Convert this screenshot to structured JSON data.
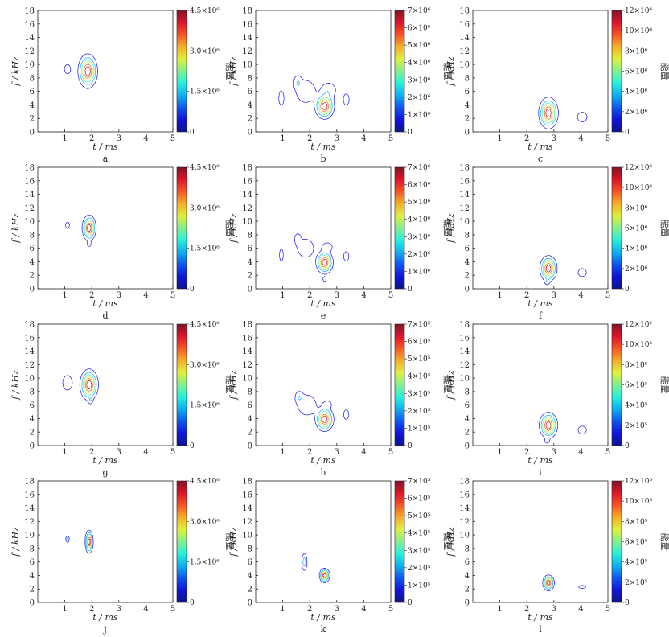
{
  "chart_data": [
    {
      "panel": "a",
      "type": "contour",
      "x_label": "t / ms",
      "y_label": "f / kHz",
      "colorbar_label": "能量",
      "xlim": [
        0,
        5
      ],
      "ylim": [
        0,
        18
      ],
      "xticks": [
        "1",
        "2",
        "3",
        "4",
        "5"
      ],
      "yticks": [
        "0",
        "2",
        "4",
        "6",
        "8",
        "10",
        "12",
        "14",
        "16",
        "18"
      ],
      "colorbar_ticks": [
        "0",
        "1.5×10⁶",
        "3.0×10⁶",
        "4.5×10⁶"
      ],
      "colorbar_max": 4500000,
      "blobs": [
        {
          "x": 1.85,
          "y": 9.0,
          "sx": 0.17,
          "sy": 1.2,
          "amp": 1.0
        },
        {
          "x": 1.1,
          "y": 9.3,
          "sx": 0.09,
          "sy": 0.55,
          "amp": 0.22
        }
      ]
    },
    {
      "panel": "b",
      "type": "contour",
      "x_label": "t / ms",
      "y_label": "f / kHz",
      "colorbar_label": "能量",
      "xlim": [
        0,
        5
      ],
      "ylim": [
        0,
        18
      ],
      "xticks": [
        "1",
        "2",
        "3",
        "4",
        "5"
      ],
      "yticks": [
        "0",
        "2",
        "4",
        "6",
        "8",
        "10",
        "12",
        "14",
        "16",
        "18"
      ],
      "colorbar_ticks": [
        "0",
        "1×10⁶",
        "2×10⁶",
        "3×10⁶",
        "4×10⁶",
        "5×10⁶",
        "6×10⁶",
        "7×10⁶"
      ],
      "colorbar_max": 7000000,
      "blobs": [
        {
          "x": 2.55,
          "y": 3.8,
          "sx": 0.17,
          "sy": 0.9,
          "amp": 1.0
        },
        {
          "x": 1.85,
          "y": 6.0,
          "sx": 0.25,
          "sy": 1.2,
          "amp": 0.25
        },
        {
          "x": 1.55,
          "y": 7.4,
          "sx": 0.1,
          "sy": 0.7,
          "amp": 0.2
        },
        {
          "x": 2.7,
          "y": 6.2,
          "sx": 0.2,
          "sy": 0.8,
          "amp": 0.22
        },
        {
          "x": 0.95,
          "y": 5.0,
          "sx": 0.08,
          "sy": 0.9,
          "amp": 0.2
        },
        {
          "x": 3.35,
          "y": 4.8,
          "sx": 0.09,
          "sy": 0.7,
          "amp": 0.2
        }
      ]
    },
    {
      "panel": "c",
      "type": "contour",
      "x_label": "t / ms",
      "y_label": "f / kHz",
      "colorbar_label": "能量",
      "xlim": [
        0,
        5
      ],
      "ylim": [
        0,
        18
      ],
      "xticks": [
        "1",
        "2",
        "3",
        "4",
        "5"
      ],
      "yticks": [
        "0",
        "2",
        "4",
        "6",
        "8",
        "10",
        "12",
        "14",
        "16",
        "18"
      ],
      "colorbar_ticks": [
        "0",
        "2×10⁶",
        "4×10⁶",
        "6×10⁶",
        "8×10⁶",
        "10×10⁶",
        "12×10⁶"
      ],
      "colorbar_max": 12000000,
      "blobs": [
        {
          "x": 2.8,
          "y": 2.8,
          "sx": 0.17,
          "sy": 1.1,
          "amp": 1.0
        },
        {
          "x": 4.05,
          "y": 2.2,
          "sx": 0.15,
          "sy": 0.6,
          "amp": 0.2
        }
      ]
    },
    {
      "panel": "d",
      "type": "contour",
      "x_label": "t / ms",
      "y_label": "f / kHz",
      "colorbar_label": "能量",
      "xlim": [
        0,
        5
      ],
      "ylim": [
        0,
        18
      ],
      "xticks": [
        "1",
        "2",
        "3",
        "4",
        "5"
      ],
      "yticks": [
        "0",
        "2",
        "4",
        "6",
        "8",
        "10",
        "12",
        "14",
        "16",
        "18"
      ],
      "colorbar_ticks": [
        "0",
        "1.5×10⁶",
        "3.0×10⁶",
        "4.5×10⁶"
      ],
      "colorbar_max": 4500000,
      "blobs": [
        {
          "x": 1.9,
          "y": 9.0,
          "sx": 0.12,
          "sy": 0.9,
          "amp": 1.0
        },
        {
          "x": 1.1,
          "y": 9.4,
          "sx": 0.06,
          "sy": 0.4,
          "amp": 0.2
        },
        {
          "x": 1.9,
          "y": 6.6,
          "sx": 0.05,
          "sy": 0.3,
          "amp": 0.18
        }
      ]
    },
    {
      "panel": "e",
      "type": "contour",
      "x_label": "t / ms",
      "y_label": "f / kHz",
      "colorbar_label": "能量",
      "xlim": [
        0,
        5
      ],
      "ylim": [
        0,
        18
      ],
      "xticks": [
        "1",
        "2",
        "3",
        "4",
        "5"
      ],
      "yticks": [
        "0",
        "2",
        "4",
        "6",
        "8",
        "10",
        "12",
        "14",
        "16",
        "18"
      ],
      "colorbar_ticks": [
        "0",
        "1×10⁶",
        "2×10⁶",
        "3×10⁶",
        "4×10⁶",
        "5×10⁶",
        "6×10⁶",
        "7×10⁶"
      ],
      "colorbar_max": 7000000,
      "blobs": [
        {
          "x": 2.55,
          "y": 3.9,
          "sx": 0.15,
          "sy": 0.8,
          "amp": 1.0
        },
        {
          "x": 1.85,
          "y": 6.0,
          "sx": 0.22,
          "sy": 1.0,
          "amp": 0.24
        },
        {
          "x": 1.55,
          "y": 7.4,
          "sx": 0.08,
          "sy": 0.6,
          "amp": 0.2
        },
        {
          "x": 2.65,
          "y": 6.2,
          "sx": 0.15,
          "sy": 0.5,
          "amp": 0.2
        },
        {
          "x": 0.95,
          "y": 5.0,
          "sx": 0.06,
          "sy": 0.8,
          "amp": 0.19
        },
        {
          "x": 3.35,
          "y": 4.8,
          "sx": 0.08,
          "sy": 0.6,
          "amp": 0.2
        },
        {
          "x": 2.55,
          "y": 1.4,
          "sx": 0.05,
          "sy": 0.3,
          "amp": 0.18
        }
      ]
    },
    {
      "panel": "f",
      "type": "contour",
      "x_label": "t / ms",
      "y_label": "f / kHz",
      "colorbar_label": "能量",
      "xlim": [
        0,
        5
      ],
      "ylim": [
        0,
        18
      ],
      "xticks": [
        "1",
        "2",
        "3",
        "4",
        "5"
      ],
      "yticks": [
        "0",
        "2",
        "4",
        "6",
        "8",
        "10",
        "12",
        "14",
        "16",
        "18"
      ],
      "colorbar_ticks": [
        "0",
        "2×10⁶",
        "4×10⁶",
        "6×10⁶",
        "8×10⁶",
        "10×10⁶",
        "12×10⁶"
      ],
      "colorbar_max": 12000000,
      "blobs": [
        {
          "x": 2.8,
          "y": 3.0,
          "sx": 0.15,
          "sy": 0.9,
          "amp": 1.0
        },
        {
          "x": 4.05,
          "y": 2.4,
          "sx": 0.13,
          "sy": 0.5,
          "amp": 0.2
        },
        {
          "x": 2.75,
          "y": 1.0,
          "sx": 0.06,
          "sy": 0.3,
          "amp": 0.18
        }
      ]
    },
    {
      "panel": "g",
      "type": "contour",
      "x_label": "t / ms",
      "y_label": "f / kHz",
      "colorbar_label": "能量",
      "xlim": [
        0,
        5
      ],
      "ylim": [
        0,
        18
      ],
      "xticks": [
        "1",
        "2",
        "3",
        "4",
        "5"
      ],
      "yticks": [
        "0",
        "2",
        "4",
        "6",
        "8",
        "10",
        "12",
        "14",
        "16",
        "18"
      ],
      "colorbar_ticks": [
        "0",
        "1.5×10⁶",
        "3.0×10⁶",
        "4.5×10⁶"
      ],
      "colorbar_max": 4500000,
      "blobs": [
        {
          "x": 1.9,
          "y": 9.0,
          "sx": 0.16,
          "sy": 1.1,
          "amp": 1.0
        },
        {
          "x": 1.1,
          "y": 9.3,
          "sx": 0.13,
          "sy": 0.8,
          "amp": 0.25
        },
        {
          "x": 1.95,
          "y": 6.6,
          "sx": 0.05,
          "sy": 0.3,
          "amp": 0.18
        }
      ]
    },
    {
      "panel": "h",
      "type": "contour",
      "x_label": "t / ms",
      "y_label": "f / kHz",
      "colorbar_label": "能量",
      "xlim": [
        0,
        5
      ],
      "ylim": [
        0,
        18
      ],
      "xticks": [
        "1",
        "2",
        "3",
        "4",
        "5"
      ],
      "yticks": [
        "0",
        "2",
        "4",
        "6",
        "8",
        "10",
        "12",
        "14",
        "16",
        "18"
      ],
      "colorbar_ticks": [
        "0",
        "1×10⁵",
        "2×10⁵",
        "3×10⁵",
        "4×10⁵",
        "5×10⁵",
        "6×10⁵",
        "7×10⁵"
      ],
      "colorbar_max": 700000,
      "blobs": [
        {
          "x": 2.55,
          "y": 3.9,
          "sx": 0.16,
          "sy": 0.85,
          "amp": 1.0
        },
        {
          "x": 1.9,
          "y": 6.0,
          "sx": 0.25,
          "sy": 1.1,
          "amp": 0.24
        },
        {
          "x": 1.6,
          "y": 7.2,
          "sx": 0.1,
          "sy": 0.6,
          "amp": 0.2
        },
        {
          "x": 2.65,
          "y": 6.1,
          "sx": 0.12,
          "sy": 0.4,
          "amp": 0.2
        },
        {
          "x": 3.35,
          "y": 4.6,
          "sx": 0.08,
          "sy": 0.6,
          "amp": 0.2
        }
      ]
    },
    {
      "panel": "i",
      "type": "contour",
      "x_label": "t / ms",
      "y_label": "f / kHz",
      "colorbar_label": "能量",
      "xlim": [
        0,
        5
      ],
      "ylim": [
        0,
        18
      ],
      "xticks": [
        "1",
        "2",
        "3",
        "4",
        "5"
      ],
      "yticks": [
        "0",
        "2",
        "4",
        "6",
        "8",
        "10",
        "12",
        "14",
        "16",
        "18"
      ],
      "colorbar_ticks": [
        "0",
        "2×10⁵",
        "4×10⁵",
        "6×10⁵",
        "8×10⁵",
        "10×10⁵",
        "12×10⁵"
      ],
      "colorbar_max": 1200000,
      "blobs": [
        {
          "x": 2.8,
          "y": 3.0,
          "sx": 0.16,
          "sy": 0.9,
          "amp": 1.0
        },
        {
          "x": 4.05,
          "y": 2.3,
          "sx": 0.13,
          "sy": 0.5,
          "amp": 0.2
        },
        {
          "x": 2.75,
          "y": 0.7,
          "sx": 0.06,
          "sy": 0.3,
          "amp": 0.18
        }
      ]
    },
    {
      "panel": "j",
      "type": "contour",
      "x_label": "t / ms",
      "y_label": "f / kHz",
      "colorbar_label": "能量",
      "xlim": [
        0,
        5
      ],
      "ylim": [
        0,
        18
      ],
      "xticks": [
        "1",
        "2",
        "3",
        "4",
        "5"
      ],
      "yticks": [
        "0",
        "2",
        "4",
        "6",
        "8",
        "10",
        "12",
        "14",
        "16",
        "18"
      ],
      "colorbar_ticks": [
        "0",
        "1.5×10⁶",
        "3.0×10⁶",
        "4.5×10⁶"
      ],
      "colorbar_max": 4500000,
      "blobs": [
        {
          "x": 1.9,
          "y": 9.0,
          "sx": 0.07,
          "sy": 0.8,
          "amp": 1.0
        },
        {
          "x": 1.1,
          "y": 9.4,
          "sx": 0.04,
          "sy": 0.3,
          "amp": 0.35
        }
      ]
    },
    {
      "panel": "k",
      "type": "contour",
      "x_label": "t / ms",
      "y_label": "f / kHz",
      "colorbar_label": "能量",
      "xlim": [
        0,
        5
      ],
      "ylim": [
        0,
        18
      ],
      "xticks": [
        "1",
        "2",
        "3",
        "4",
        "5"
      ],
      "yticks": [
        "0",
        "2",
        "4",
        "6",
        "8",
        "10",
        "12",
        "14",
        "16",
        "18"
      ],
      "colorbar_ticks": [
        "0",
        "1×10⁵",
        "2×10⁵",
        "3×10⁵",
        "4×10⁵",
        "5×10⁵",
        "6×10⁵",
        "7×10⁵"
      ],
      "colorbar_max": 700000,
      "blobs": [
        {
          "x": 2.55,
          "y": 4.0,
          "sx": 0.09,
          "sy": 0.5,
          "amp": 1.0
        },
        {
          "x": 1.8,
          "y": 6.0,
          "sx": 0.06,
          "sy": 0.8,
          "amp": 0.35
        }
      ]
    },
    {
      "panel": "l",
      "type": "contour",
      "x_label": "t / ms",
      "y_label": "f / kHz",
      "colorbar_label": "能量",
      "xlim": [
        0,
        5
      ],
      "ylim": [
        0,
        18
      ],
      "xticks": [
        "1",
        "2",
        "3",
        "4",
        "5"
      ],
      "yticks": [
        "0",
        "2",
        "4",
        "6",
        "8",
        "10",
        "12",
        "14",
        "16",
        "18"
      ],
      "colorbar_ticks": [
        "0",
        "2×10⁵",
        "4×10⁵",
        "6×10⁵",
        "8×10⁵",
        "10×10⁵",
        "12×10⁵"
      ],
      "colorbar_max": 1200000,
      "blobs": [
        {
          "x": 2.8,
          "y": 2.9,
          "sx": 0.1,
          "sy": 0.55,
          "amp": 1.0
        },
        {
          "x": 4.05,
          "y": 2.3,
          "sx": 0.1,
          "sy": 0.15,
          "amp": 0.25
        }
      ]
    }
  ]
}
